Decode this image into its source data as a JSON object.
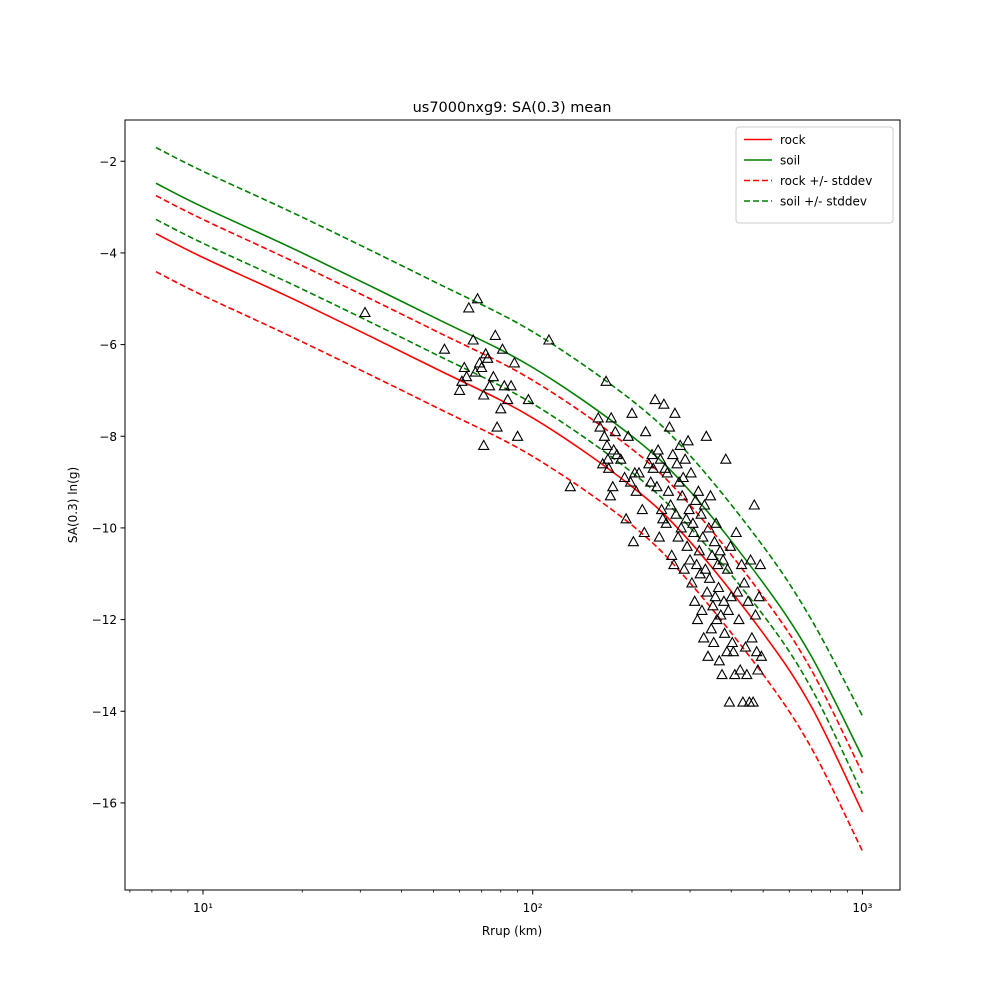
{
  "chart_data": {
    "type": "scatter",
    "title": "us7000nxg9: SA(0.3) mean",
    "xlabel": "Rrup (km)",
    "ylabel": "SA(0.3) ln(g)",
    "xscale": "log",
    "xlim": [
      5.8,
      1300
    ],
    "ylim": [
      -17.9,
      -1.1
    ],
    "grid": false,
    "legend_position": "top-right",
    "x_ticks": [
      {
        "value": 10,
        "label": "10¹"
      },
      {
        "value": 100,
        "label": "10²"
      },
      {
        "value": 1000,
        "label": "10³"
      }
    ],
    "y_ticks": [
      {
        "value": -2,
        "label": "−2"
      },
      {
        "value": -4,
        "label": "−4"
      },
      {
        "value": -6,
        "label": "−6"
      },
      {
        "value": -8,
        "label": "−8"
      },
      {
        "value": -10,
        "label": "−10"
      },
      {
        "value": -12,
        "label": "−12"
      },
      {
        "value": -14,
        "label": "−14"
      },
      {
        "value": -16,
        "label": "−16"
      }
    ],
    "x": [
      7.2,
      10,
      20,
      50,
      100,
      200,
      300,
      500,
      700,
      1000
    ],
    "series": [
      {
        "name": "rock",
        "color": "#ff0000",
        "dash": "solid",
        "values": [
          -3.58,
          -4.1,
          -5.1,
          -6.5,
          -7.6,
          -9.1,
          -10.3,
          -12.3,
          -13.9,
          -16.2
        ]
      },
      {
        "name": "soil",
        "color": "#008000",
        "dash": "solid",
        "values": [
          -2.48,
          -3.0,
          -4.0,
          -5.4,
          -6.5,
          -8.0,
          -9.2,
          -11.2,
          -12.8,
          -15.0
        ]
      },
      {
        "name": "rock +/- stddev",
        "color": "#ff0000",
        "dash": "dashed",
        "values": [
          -2.75,
          -3.27,
          -4.28,
          -5.68,
          -6.78,
          -8.28,
          -9.5,
          -11.5,
          -13.1,
          -15.35
        ]
      },
      {
        "name": "rock +/- stddev",
        "color": "#ff0000",
        "dash": "dashed",
        "legend": false,
        "values": [
          -4.41,
          -4.93,
          -5.94,
          -7.34,
          -8.44,
          -9.94,
          -11.2,
          -13.2,
          -14.8,
          -17.05
        ]
      },
      {
        "name": "soil +/- stddev",
        "color": "#008000",
        "dash": "dashed",
        "values": [
          -1.7,
          -2.22,
          -3.22,
          -4.62,
          -5.72,
          -7.22,
          -8.42,
          -10.4,
          -12.0,
          -14.1
        ]
      },
      {
        "name": "soil +/- stddev",
        "color": "#008000",
        "dash": "dashed",
        "legend": false,
        "values": [
          -3.27,
          -3.79,
          -4.79,
          -6.19,
          -7.29,
          -8.79,
          -9.99,
          -11.9,
          -13.5,
          -15.8
        ]
      }
    ],
    "observations": {
      "marker": "triangle-open",
      "color": "#000000",
      "points": [
        [
          31,
          -5.3
        ],
        [
          54,
          -6.1
        ],
        [
          60,
          -7.0
        ],
        [
          61,
          -6.8
        ],
        [
          62,
          -6.5
        ],
        [
          63,
          -6.7
        ],
        [
          64,
          -5.2
        ],
        [
          66,
          -5.9
        ],
        [
          67,
          -6.6
        ],
        [
          68,
          -5.0
        ],
        [
          69,
          -6.4
        ],
        [
          70,
          -6.5
        ],
        [
          71,
          -7.1
        ],
        [
          71,
          -8.2
        ],
        [
          72,
          -6.2
        ],
        [
          73,
          -6.3
        ],
        [
          74,
          -6.9
        ],
        [
          76,
          -6.7
        ],
        [
          77,
          -5.8
        ],
        [
          78,
          -7.8
        ],
        [
          80,
          -7.4
        ],
        [
          81,
          -6.1
        ],
        [
          82,
          -6.9
        ],
        [
          84,
          -7.2
        ],
        [
          86,
          -6.9
        ],
        [
          88,
          -6.4
        ],
        [
          90,
          -8.0
        ],
        [
          97,
          -7.2
        ],
        [
          112,
          -5.9
        ],
        [
          130,
          -9.1
        ],
        [
          158,
          -7.6
        ],
        [
          160,
          -7.8
        ],
        [
          163,
          -8.6
        ],
        [
          165,
          -8.0
        ],
        [
          167,
          -6.8
        ],
        [
          168,
          -8.2
        ],
        [
          169,
          -8.5
        ],
        [
          170,
          -8.7
        ],
        [
          172,
          -9.3
        ],
        [
          173,
          -7.6
        ],
        [
          175,
          -9.1
        ],
        [
          176,
          -8.3
        ],
        [
          178,
          -7.9
        ],
        [
          180,
          -8.4
        ],
        [
          185,
          -8.5
        ],
        [
          190,
          -8.9
        ],
        [
          192,
          -9.8
        ],
        [
          195,
          -8.0
        ],
        [
          198,
          -9.0
        ],
        [
          200,
          -7.5
        ],
        [
          202,
          -10.3
        ],
        [
          204,
          -8.8
        ],
        [
          206,
          -9.2
        ],
        [
          210,
          -8.8
        ],
        [
          215,
          -9.6
        ],
        [
          218,
          -10.1
        ],
        [
          220,
          -7.9
        ],
        [
          225,
          -8.6
        ],
        [
          228,
          -9.0
        ],
        [
          230,
          -8.4
        ],
        [
          232,
          -8.7
        ],
        [
          235,
          -7.2
        ],
        [
          238,
          -9.1
        ],
        [
          240,
          -8.3
        ],
        [
          242,
          -10.2
        ],
        [
          244,
          -8.5
        ],
        [
          246,
          -9.6
        ],
        [
          248,
          -9.8
        ],
        [
          250,
          -7.3
        ],
        [
          252,
          -8.7
        ],
        [
          254,
          -9.9
        ],
        [
          256,
          -8.8
        ],
        [
          258,
          -9.2
        ],
        [
          260,
          -7.8
        ],
        [
          262,
          -9.5
        ],
        [
          264,
          -10.6
        ],
        [
          266,
          -8.4
        ],
        [
          268,
          -10.8
        ],
        [
          270,
          -7.5
        ],
        [
          272,
          -9.7
        ],
        [
          274,
          -8.6
        ],
        [
          276,
          -10.2
        ],
        [
          278,
          -9.0
        ],
        [
          280,
          -8.2
        ],
        [
          282,
          -10.0
        ],
        [
          284,
          -9.3
        ],
        [
          286,
          -8.9
        ],
        [
          288,
          -10.9
        ],
        [
          290,
          -8.5
        ],
        [
          292,
          -9.8
        ],
        [
          294,
          -10.4
        ],
        [
          296,
          -8.1
        ],
        [
          298,
          -9.6
        ],
        [
          300,
          -10.7
        ],
        [
          302,
          -8.8
        ],
        [
          304,
          -11.2
        ],
        [
          306,
          -9.9
        ],
        [
          308,
          -10.1
        ],
        [
          310,
          -11.6
        ],
        [
          312,
          -9.4
        ],
        [
          314,
          -10.8
        ],
        [
          316,
          -12.0
        ],
        [
          318,
          -9.2
        ],
        [
          320,
          -10.5
        ],
        [
          322,
          -11.0
        ],
        [
          324,
          -9.7
        ],
        [
          326,
          -11.8
        ],
        [
          328,
          -10.2
        ],
        [
          330,
          -12.4
        ],
        [
          332,
          -9.5
        ],
        [
          334,
          -10.9
        ],
        [
          336,
          -8.0
        ],
        [
          338,
          -11.4
        ],
        [
          340,
          -12.8
        ],
        [
          342,
          -10.0
        ],
        [
          344,
          -11.1
        ],
        [
          346,
          -9.3
        ],
        [
          348,
          -12.2
        ],
        [
          350,
          -10.6
        ],
        [
          352,
          -11.7
        ],
        [
          354,
          -12.5
        ],
        [
          356,
          -10.3
        ],
        [
          358,
          -11.5
        ],
        [
          360,
          -9.9
        ],
        [
          362,
          -12.0
        ],
        [
          364,
          -10.8
        ],
        [
          366,
          -11.3
        ],
        [
          368,
          -12.9
        ],
        [
          370,
          -10.5
        ],
        [
          372,
          -11.9
        ],
        [
          375,
          -13.2
        ],
        [
          378,
          -10.7
        ],
        [
          380,
          -11.6
        ],
        [
          382,
          -12.3
        ],
        [
          385,
          -8.5
        ],
        [
          388,
          -12.7
        ],
        [
          390,
          -10.9
        ],
        [
          392,
          -11.8
        ],
        [
          395,
          -13.8
        ],
        [
          398,
          -10.4
        ],
        [
          400,
          -11.5
        ],
        [
          403,
          -12.5
        ],
        [
          406,
          -12.7
        ],
        [
          410,
          -13.2
        ],
        [
          414,
          -10.1
        ],
        [
          418,
          -11.4
        ],
        [
          422,
          -12.0
        ],
        [
          426,
          -13.1
        ],
        [
          430,
          -10.8
        ],
        [
          434,
          -13.8
        ],
        [
          438,
          -11.2
        ],
        [
          442,
          -12.6
        ],
        [
          446,
          -13.2
        ],
        [
          450,
          -11.6
        ],
        [
          454,
          -13.8
        ],
        [
          458,
          -10.7
        ],
        [
          462,
          -12.4
        ],
        [
          466,
          -13.8
        ],
        [
          470,
          -9.5
        ],
        [
          474,
          -11.9
        ],
        [
          478,
          -12.7
        ],
        [
          482,
          -13.1
        ],
        [
          486,
          -11.5
        ],
        [
          490,
          -10.8
        ],
        [
          494,
          -12.8
        ]
      ]
    }
  }
}
